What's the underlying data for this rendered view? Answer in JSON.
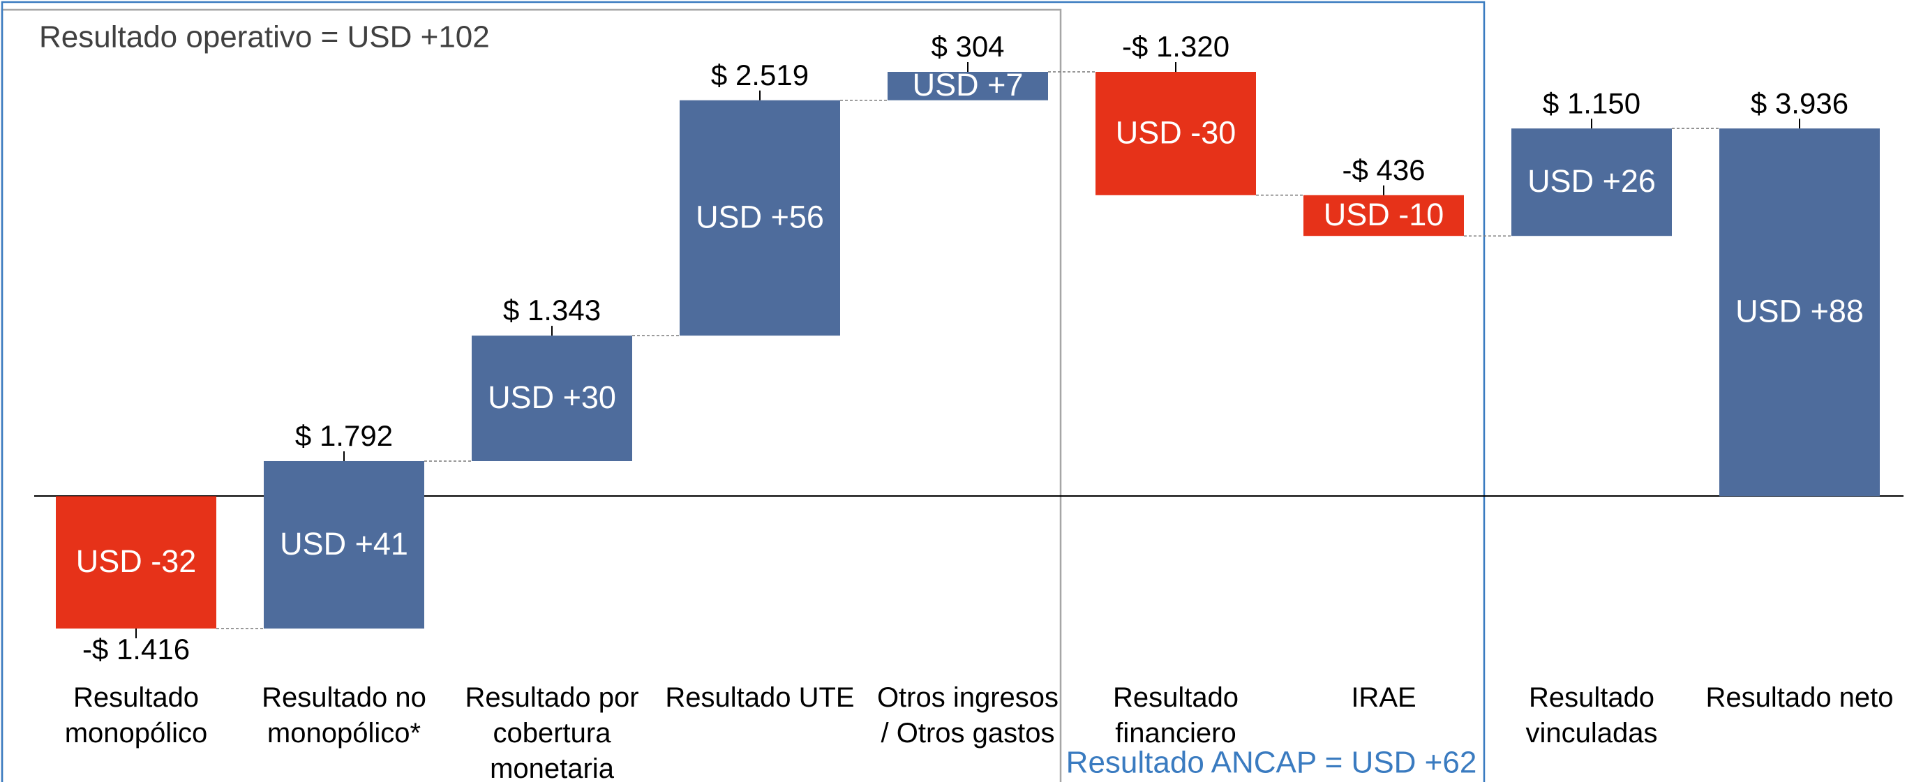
{
  "chart_data": {
    "type": "waterfall",
    "categories": [
      "Resultado\nmonopólico",
      "Resultado no\nmonopólico*",
      "Resultado por\ncobertura\nmonetaria",
      "Resultado UTE",
      "Otros ingresos\n/ Otros gastos",
      "Resultado\nfinanciero",
      "IRAE",
      "Resultado\nvinculadas",
      "Resultado neto"
    ],
    "values": [
      -1416,
      1792,
      1343,
      2519,
      304,
      -1320,
      -436,
      1150,
      3936
    ],
    "value_labels": [
      "-$ 1.416",
      "$ 1.792",
      "$ 1.343",
      "$ 2.519",
      "$ 304",
      "-$ 1.320",
      "-$ 436",
      "$ 1.150",
      "$ 3.936"
    ],
    "measure": [
      "relative",
      "relative",
      "relative",
      "relative",
      "relative",
      "relative",
      "relative",
      "relative",
      "total"
    ],
    "inner_labels": [
      "USD -32",
      "USD +41",
      "USD +30",
      "USD +56",
      "USD +7",
      "USD -30",
      "USD -10",
      "USD +26",
      "USD +88"
    ],
    "colors": {
      "positive": "#4e6c9c",
      "negative": "#e63219"
    },
    "annotations": [
      {
        "text": "Resultado operativo = USD +102",
        "color": "#404040"
      },
      {
        "text": "Resultado ANCAP = USD +62",
        "color": "#3a7bc0"
      }
    ]
  }
}
